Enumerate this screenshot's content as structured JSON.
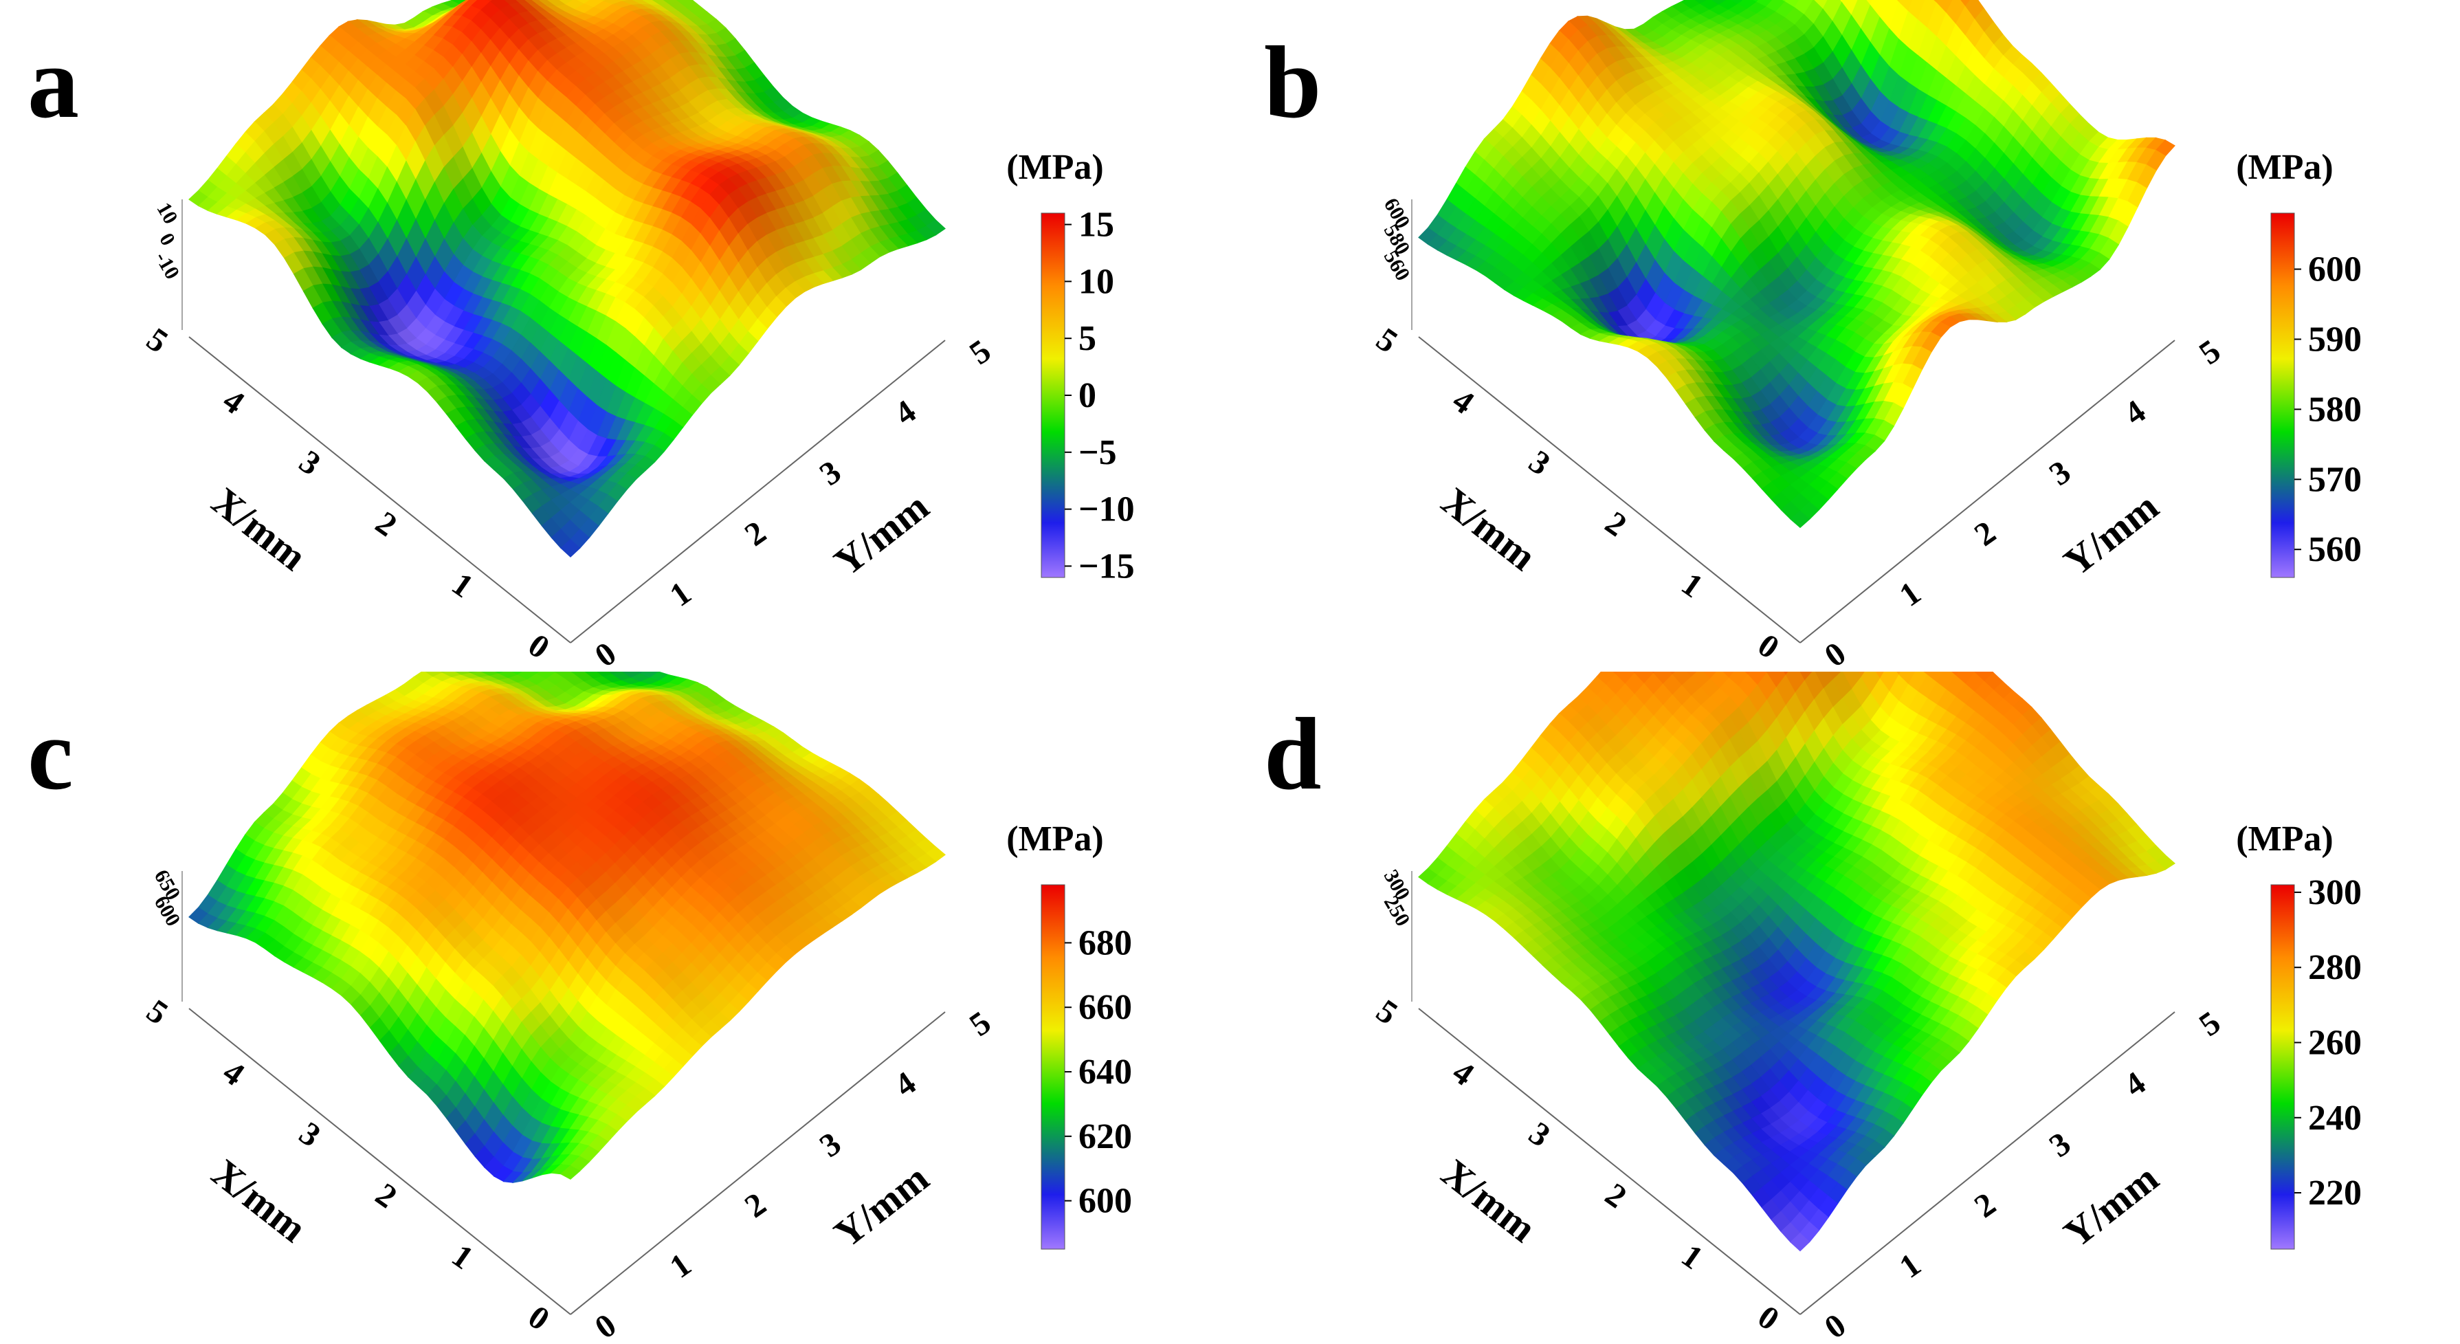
{
  "chart_data": [
    {
      "panel": "a",
      "type": "surface3d",
      "xlabel": "X/mm",
      "ylabel": "Y/mm",
      "x_ticks": [
        "0",
        "1",
        "2",
        "3",
        "4",
        "5"
      ],
      "y_ticks": [
        "0",
        "1",
        "2",
        "3",
        "4",
        "5"
      ],
      "z_ticks": [
        "10",
        "0",
        "-10"
      ],
      "colorbar_title": "(MPa)",
      "colorbar_ticks": [
        "15",
        "10",
        "5",
        "0",
        "−5",
        "−10",
        "−15"
      ],
      "clim": [
        -16,
        16
      ],
      "z": [
        [
          -10,
          -5,
          0,
          5,
          0,
          -5
        ],
        [
          -5,
          -15,
          5,
          15,
          10,
          0
        ],
        [
          0,
          -10,
          0,
          10,
          5,
          -5
        ],
        [
          -5,
          -15,
          -5,
          12,
          10,
          0
        ],
        [
          5,
          -5,
          10,
          15,
          5,
          0
        ],
        [
          0,
          5,
          10,
          0,
          -5,
          5
        ]
      ]
    },
    {
      "panel": "b",
      "type": "surface3d",
      "xlabel": "X/mm",
      "ylabel": "Y/mm",
      "x_ticks": [
        "0",
        "1",
        "2",
        "3",
        "4",
        "5"
      ],
      "y_ticks": [
        "0",
        "1",
        "2",
        "3",
        "4",
        "5"
      ],
      "z_ticks": [
        "600",
        "580",
        "560"
      ],
      "colorbar_title": "(MPa)",
      "colorbar_ticks": [
        "600",
        "590",
        "580",
        "570",
        "560"
      ],
      "clim": [
        556,
        608
      ],
      "z": [
        [
          575,
          580,
          600,
          585,
          580,
          600
        ],
        [
          580,
          565,
          580,
          590,
          570,
          585
        ],
        [
          590,
          575,
          570,
          580,
          575,
          590
        ],
        [
          580,
          560,
          585,
          590,
          565,
          600
        ],
        [
          575,
          580,
          590,
          585,
          580,
          600
        ],
        [
          570,
          585,
          600,
          580,
          575,
          590
        ]
      ]
    },
    {
      "panel": "c",
      "type": "surface3d",
      "xlabel": "X/mm",
      "ylabel": "Y/mm",
      "x_ticks": [
        "0",
        "1",
        "2",
        "3",
        "4",
        "5"
      ],
      "y_ticks": [
        "0",
        "1",
        "2",
        "3",
        "4",
        "5"
      ],
      "z_ticks": [
        "650",
        "600"
      ],
      "colorbar_title": "(MPa)",
      "colorbar_ticks": [
        "680",
        "660",
        "640",
        "620",
        "600"
      ],
      "clim": [
        585,
        698
      ],
      "z": [
        [
          640,
          650,
          660,
          670,
          665,
          655
        ],
        [
          600,
          640,
          670,
          680,
          675,
          660
        ],
        [
          620,
          660,
          685,
          690,
          680,
          650
        ],
        [
          640,
          670,
          690,
          685,
          670,
          640
        ],
        [
          630,
          660,
          680,
          670,
          640,
          620
        ],
        [
          610,
          640,
          660,
          650,
          630,
          640
        ]
      ]
    },
    {
      "panel": "d",
      "type": "surface3d",
      "xlabel": "X/mm",
      "ylabel": "Y/mm",
      "x_ticks": [
        "0",
        "1",
        "2",
        "3",
        "4",
        "5"
      ],
      "y_ticks": [
        "0",
        "1",
        "2",
        "3",
        "4",
        "5"
      ],
      "z_ticks": [
        "300",
        "250"
      ],
      "colorbar_title": "(MPa)",
      "colorbar_ticks": [
        "300",
        "280",
        "260",
        "240",
        "220"
      ],
      "clim": [
        205,
        302
      ],
      "z": [
        [
          210,
          230,
          250,
          270,
          280,
          260
        ],
        [
          225,
          215,
          240,
          260,
          280,
          270
        ],
        [
          240,
          230,
          220,
          250,
          275,
          285
        ],
        [
          255,
          245,
          235,
          240,
          260,
          290
        ],
        [
          260,
          250,
          270,
          280,
          295,
          300
        ],
        [
          250,
          265,
          280,
          290,
          300,
          285
        ]
      ]
    }
  ]
}
